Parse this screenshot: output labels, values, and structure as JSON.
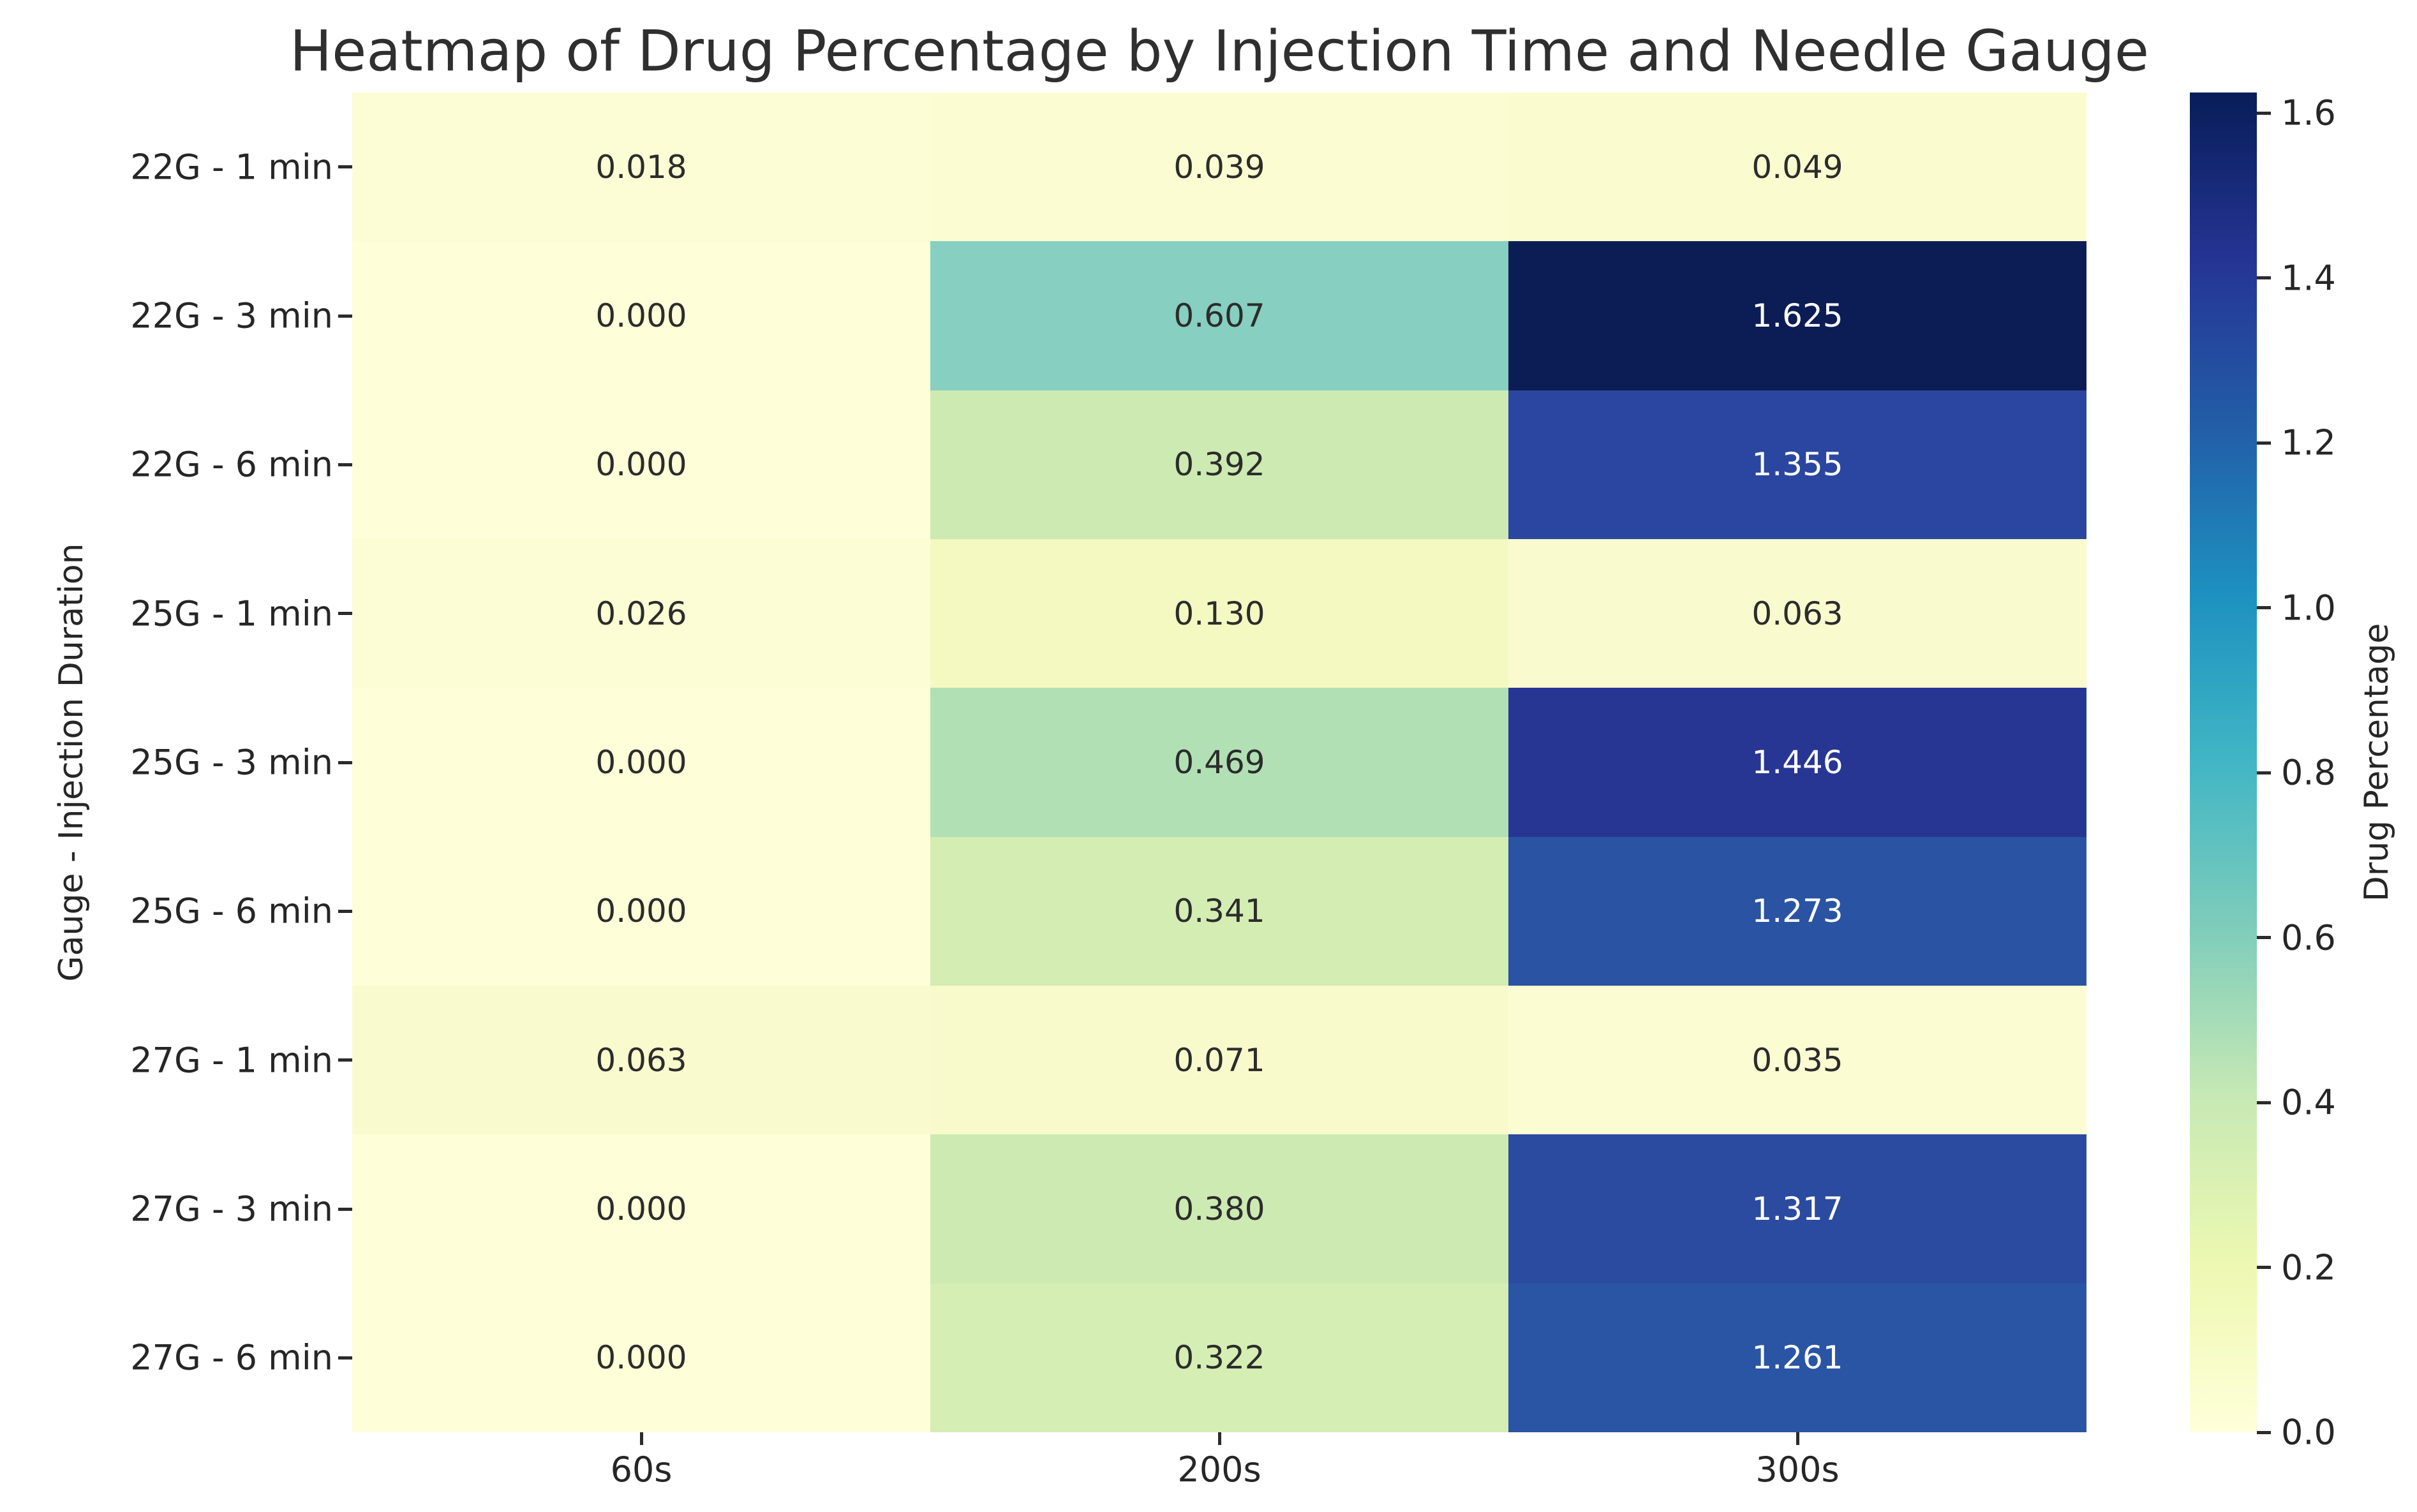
{
  "chart_data": {
    "type": "heatmap",
    "title": "Heatmap of Drug Percentage by Injection Time and Needle Gauge",
    "xlabel": "",
    "ylabel": "Gauge - Injection Duration",
    "x_ticklabels": [
      "60s",
      "200s",
      "300s"
    ],
    "y_ticklabels": [
      "22G - 1 min",
      "22G - 3 min",
      "22G - 6 min",
      "25G - 1 min",
      "25G - 3 min",
      "25G - 6 min",
      "27G - 1 min",
      "27G - 3 min",
      "27G - 6 min"
    ],
    "values": [
      [
        0.018,
        0.039,
        0.049
      ],
      [
        0.0,
        0.607,
        1.625
      ],
      [
        0.0,
        0.392,
        1.355
      ],
      [
        0.026,
        0.13,
        0.063
      ],
      [
        0.0,
        0.469,
        1.446
      ],
      [
        0.0,
        0.341,
        1.273
      ],
      [
        0.063,
        0.071,
        0.035
      ],
      [
        0.0,
        0.38,
        1.317
      ],
      [
        0.0,
        0.322,
        1.261
      ]
    ],
    "value_decimals": 3,
    "cell_colors": [
      [
        "#fcfdd4",
        "#fbfcd1",
        "#fafcd0"
      ],
      [
        "#feffd8",
        "#86cfc1",
        "#0c1c55"
      ],
      [
        "#feffd8",
        "#cceab1",
        "#2a46a0"
      ],
      [
        "#fcfdd5",
        "#f3f9c0",
        "#f9fbce"
      ],
      [
        "#feffd8",
        "#b2e0b5",
        "#283693"
      ],
      [
        "#feffd8",
        "#d3edb3",
        "#2a53a3"
      ],
      [
        "#f9fbce",
        "#f8facc",
        "#fbfcd2"
      ],
      [
        "#feffd8",
        "#cdeab2",
        "#2b4ba0"
      ],
      [
        "#feffd8",
        "#d5eeb4",
        "#2a55a5"
      ]
    ],
    "annotation_text_dark": "#2c2c2c",
    "annotation_text_light": "#ffffff",
    "colormap": "YlGnBu",
    "vmin": 0.0,
    "vmax": 1.625,
    "grid": false,
    "colorbar": {
      "label": "Drug Percentage",
      "ticks": [
        0.0,
        0.2,
        0.4,
        0.6,
        0.8,
        1.0,
        1.2,
        1.4,
        1.6
      ],
      "gradient_stops": [
        {
          "pos": 0.0,
          "color": "#ffffd9"
        },
        {
          "pos": 0.125,
          "color": "#edf8b1"
        },
        {
          "pos": 0.25,
          "color": "#c7e9b4"
        },
        {
          "pos": 0.375,
          "color": "#7fcdbb"
        },
        {
          "pos": 0.5,
          "color": "#41b6c4"
        },
        {
          "pos": 0.625,
          "color": "#1d91c0"
        },
        {
          "pos": 0.75,
          "color": "#225ea8"
        },
        {
          "pos": 0.875,
          "color": "#253494"
        },
        {
          "pos": 1.0,
          "color": "#081d58"
        }
      ]
    }
  }
}
